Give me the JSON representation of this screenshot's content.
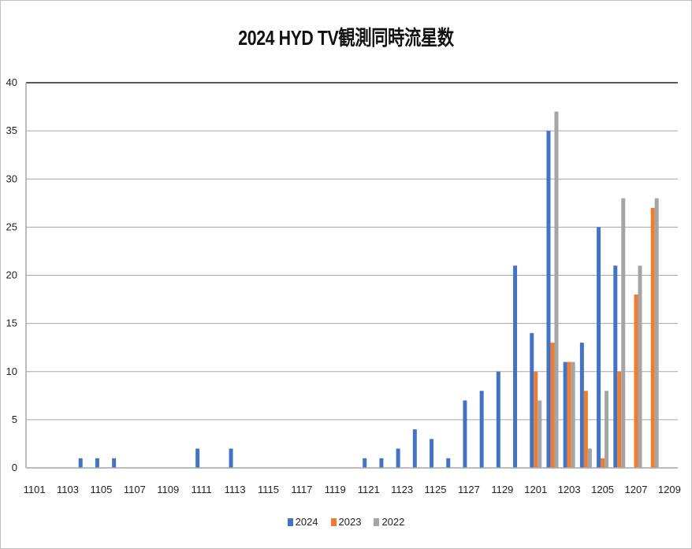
{
  "chart_data": {
    "type": "bar",
    "title": "2024 HYD TV観測同時流星数",
    "xlabel": "",
    "ylabel": "",
    "ylim": [
      0,
      40
    ],
    "yticks": [
      0,
      5,
      10,
      15,
      20,
      25,
      30,
      35,
      40
    ],
    "grid": true,
    "legend_position": "bottom",
    "categories": [
      "1101",
      "1102",
      "1103",
      "1104",
      "1105",
      "1106",
      "1107",
      "1108",
      "1109",
      "1110",
      "1111",
      "1112",
      "1113",
      "1114",
      "1115",
      "1116",
      "1117",
      "1118",
      "1119",
      "1120",
      "1121",
      "1122",
      "1123",
      "1124",
      "1125",
      "1126",
      "1127",
      "1128",
      "1129",
      "1130",
      "1201",
      "1202",
      "1203",
      "1204",
      "1205",
      "1206",
      "1207",
      "1208",
      "1209"
    ],
    "xtick_labels_shown": [
      "1101",
      "1103",
      "1105",
      "1107",
      "1109",
      "1111",
      "1113",
      "1115",
      "1117",
      "1119",
      "1121",
      "1123",
      "1125",
      "1127",
      "1129",
      "1201",
      "1203",
      "1205",
      "1207",
      "1209"
    ],
    "series": [
      {
        "name": "2024",
        "color": "#4472C4",
        "values": [
          0,
          0,
          0,
          1,
          1,
          1,
          0,
          0,
          0,
          0,
          2,
          0,
          2,
          0,
          0,
          0,
          0,
          0,
          0,
          0,
          1,
          1,
          2,
          4,
          3,
          1,
          7,
          8,
          10,
          21,
          14,
          35,
          11,
          13,
          25,
          21,
          0,
          0,
          0
        ]
      },
      {
        "name": "2023",
        "color": "#ED7D31",
        "values": [
          0,
          0,
          0,
          0,
          0,
          0,
          0,
          0,
          0,
          0,
          0,
          0,
          0,
          0,
          0,
          0,
          0,
          0,
          0,
          0,
          0,
          0,
          0,
          0,
          0,
          0,
          0,
          0,
          0,
          0,
          10,
          13,
          11,
          8,
          1,
          10,
          18,
          27,
          0
        ]
      },
      {
        "name": "2022",
        "color": "#A5A5A5",
        "values": [
          0,
          0,
          0,
          0,
          0,
          0,
          0,
          0,
          0,
          0,
          0,
          0,
          0,
          0,
          0,
          0,
          0,
          0,
          0,
          0,
          0,
          0,
          0,
          0,
          0,
          0,
          0,
          0,
          0,
          0,
          7,
          37,
          11,
          2,
          8,
          28,
          21,
          28,
          0
        ]
      }
    ]
  }
}
